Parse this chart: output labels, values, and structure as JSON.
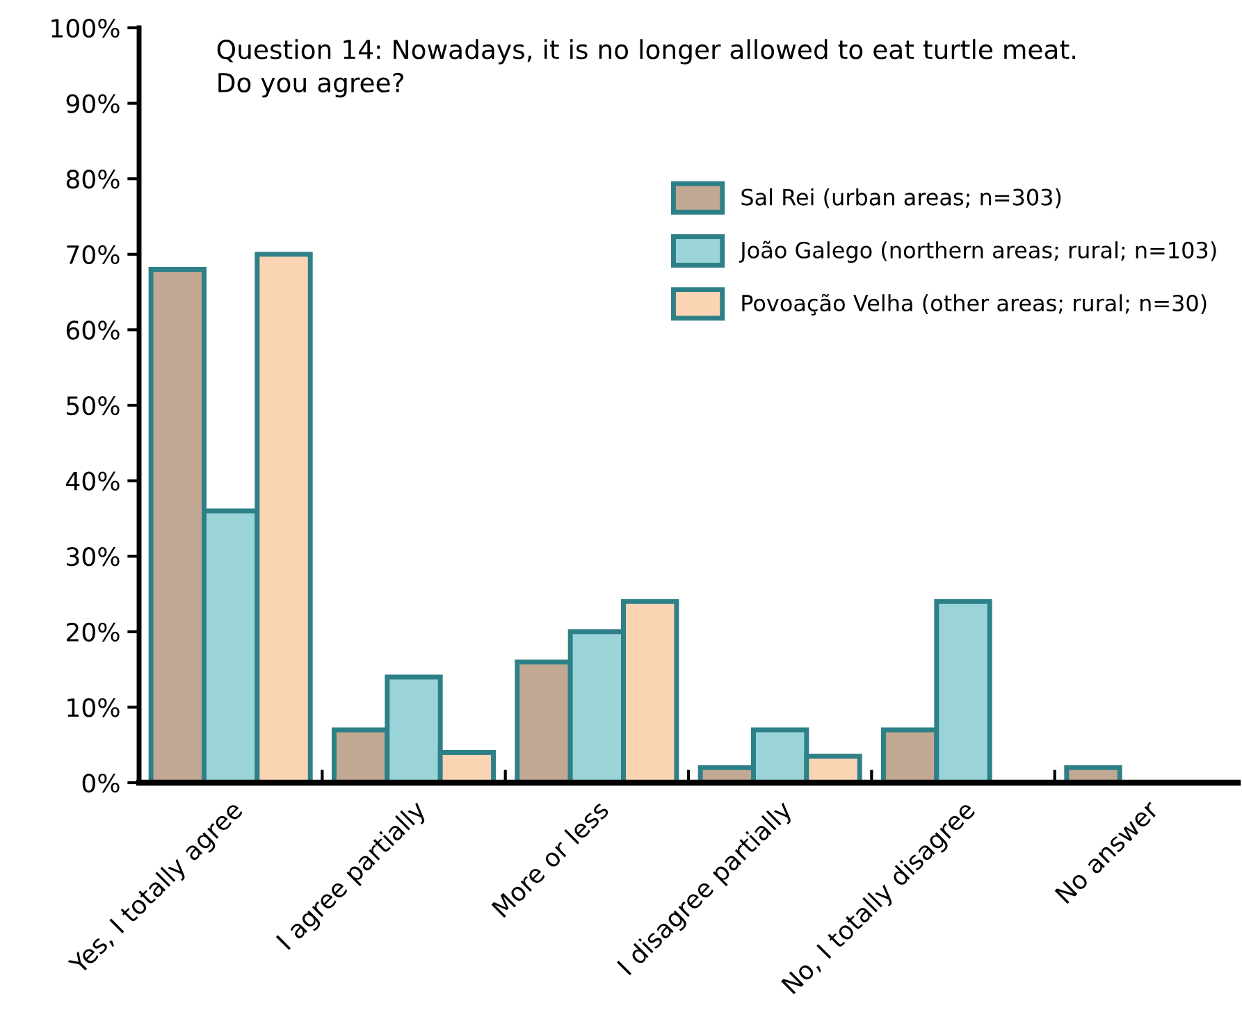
{
  "chart_data": {
    "type": "bar",
    "title": "Question 14: Nowadays, it is no longer allowed to eat turtle meat.\nDo you agree?",
    "categories": [
      "Yes, I totally agree",
      "I agree partially",
      "More or less",
      "I disagree partially",
      "No, I totally disagree",
      "No answer"
    ],
    "series": [
      {
        "name": "Sal Rei (urban areas; n=303)",
        "color": "#c2a893",
        "values": [
          68,
          7,
          16,
          2,
          7,
          2
        ]
      },
      {
        "name": "João Galego (northern areas; rural; n=103)",
        "color": "#9bd4d8",
        "values": [
          36,
          14,
          20,
          7,
          24,
          null
        ]
      },
      {
        "name": "Povoação Velha (other areas; rural; n=30)",
        "color": "#fbd4b4",
        "values": [
          70,
          4,
          24,
          3.5,
          null,
          null
        ]
      }
    ],
    "ylim": [
      0,
      100
    ],
    "yticks": [
      {
        "value": 0,
        "label": "0%"
      },
      {
        "value": 10,
        "label": "10%"
      },
      {
        "value": 20,
        "label": "20%"
      },
      {
        "value": 30,
        "label": "30%"
      },
      {
        "value": 40,
        "label": "40%"
      },
      {
        "value": 50,
        "label": "50%"
      },
      {
        "value": 60,
        "label": "60%"
      },
      {
        "value": 70,
        "label": "70%"
      },
      {
        "value": 80,
        "label": "80%"
      },
      {
        "value": 90,
        "label": "90%"
      },
      {
        "value": 100,
        "label": "100%"
      }
    ],
    "grid": false,
    "legend": "top right"
  }
}
